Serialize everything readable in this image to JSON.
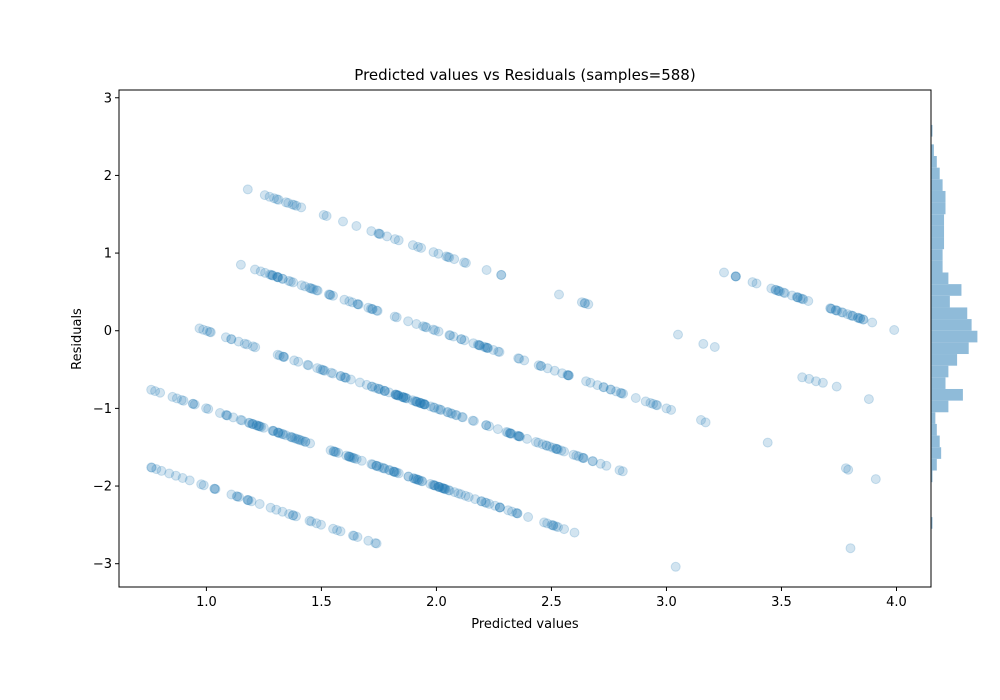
{
  "chart_data": {
    "type": "scatter",
    "title": "Predicted values vs Residuals (samples=588)",
    "xlabel": "Predicted values",
    "ylabel": "Residuals",
    "xlim": [
      0.62,
      4.15
    ],
    "ylim": [
      -3.3,
      3.1
    ],
    "x_ticks": [
      1.0,
      1.5,
      2.0,
      2.5,
      3.0,
      3.5,
      4.0
    ],
    "x_tick_labels": [
      "1.0",
      "1.5",
      "2.0",
      "2.5",
      "3.0",
      "3.5",
      "4.0"
    ],
    "y_ticks": [
      3,
      2,
      1,
      0,
      -1,
      -2,
      -3
    ],
    "y_tick_labels": [
      "3",
      "2",
      "1",
      "0",
      "−1",
      "−2",
      "−3"
    ],
    "grid": false,
    "marker_color": "#1f77b4",
    "marker_alpha": 0.2,
    "histogram_color": "#8fbbd9",
    "bands": [
      {
        "residual_at_2": -1.0,
        "x_range": [
          0.76,
          1.74
        ],
        "count": 40
      },
      {
        "residual_at_2": 0.0,
        "x_range": [
          0.76,
          2.6
        ],
        "count": 140
      },
      {
        "residual_at_2": 1.0,
        "x_range": [
          0.97,
          2.81
        ],
        "count": 130
      },
      {
        "residual_at_2": 2.0,
        "x_range": [
          1.15,
          3.02
        ],
        "count": 100
      },
      {
        "residual_at_2": 3.0,
        "x_range": [
          1.18,
          2.66
        ],
        "count": 40
      },
      {
        "residual_at_2": 4.0,
        "x_range": [
          3.25,
          3.99
        ],
        "count": 40
      }
    ],
    "outliers": [
      {
        "x": 3.05,
        "y": -0.05
      },
      {
        "x": 3.16,
        "y": -0.17
      },
      {
        "x": 3.21,
        "y": -0.21
      },
      {
        "x": 3.59,
        "y": -0.6
      },
      {
        "x": 3.62,
        "y": -0.62
      },
      {
        "x": 3.65,
        "y": -0.65
      },
      {
        "x": 3.68,
        "y": -0.67
      },
      {
        "x": 3.74,
        "y": -0.72
      },
      {
        "x": 3.88,
        "y": -0.88
      },
      {
        "x": 3.15,
        "y": -1.15
      },
      {
        "x": 3.17,
        "y": -1.18
      },
      {
        "x": 3.44,
        "y": -1.44
      },
      {
        "x": 3.78,
        "y": -1.77
      },
      {
        "x": 3.79,
        "y": -1.79
      },
      {
        "x": 3.91,
        "y": -1.91
      },
      {
        "x": 2.23,
        "y": -2.23
      },
      {
        "x": 2.52,
        "y": -2.52
      },
      {
        "x": 3.8,
        "y": -2.8
      },
      {
        "x": 3.04,
        "y": -3.04
      }
    ],
    "histogram": [
      {
        "y_from": 2.5,
        "y_to": 2.65,
        "count": 1
      },
      {
        "y_from": 2.25,
        "y_to": 2.4,
        "count": 2
      },
      {
        "y_from": 2.1,
        "y_to": 2.25,
        "count": 4
      },
      {
        "y_from": 1.95,
        "y_to": 2.1,
        "count": 6
      },
      {
        "y_from": 1.8,
        "y_to": 1.95,
        "count": 8
      },
      {
        "y_from": 1.65,
        "y_to": 1.8,
        "count": 10
      },
      {
        "y_from": 1.5,
        "y_to": 1.65,
        "count": 10
      },
      {
        "y_from": 1.35,
        "y_to": 1.5,
        "count": 9
      },
      {
        "y_from": 1.2,
        "y_to": 1.35,
        "count": 9
      },
      {
        "y_from": 1.05,
        "y_to": 1.2,
        "count": 9
      },
      {
        "y_from": 0.9,
        "y_to": 1.05,
        "count": 8
      },
      {
        "y_from": 0.75,
        "y_to": 0.9,
        "count": 8
      },
      {
        "y_from": 0.6,
        "y_to": 0.75,
        "count": 12
      },
      {
        "y_from": 0.45,
        "y_to": 0.6,
        "count": 21
      },
      {
        "y_from": 0.3,
        "y_to": 0.45,
        "count": 13
      },
      {
        "y_from": 0.15,
        "y_to": 0.3,
        "count": 25
      },
      {
        "y_from": 0.0,
        "y_to": 0.15,
        "count": 28
      },
      {
        "y_from": -0.15,
        "y_to": 0.0,
        "count": 32
      },
      {
        "y_from": -0.3,
        "y_to": -0.15,
        "count": 26
      },
      {
        "y_from": -0.45,
        "y_to": -0.3,
        "count": 18
      },
      {
        "y_from": -0.6,
        "y_to": -0.45,
        "count": 12
      },
      {
        "y_from": -0.75,
        "y_to": -0.6,
        "count": 10
      },
      {
        "y_from": -0.9,
        "y_to": -0.75,
        "count": 22
      },
      {
        "y_from": -1.05,
        "y_to": -0.9,
        "count": 12
      },
      {
        "y_from": -1.2,
        "y_to": -1.05,
        "count": 3
      },
      {
        "y_from": -1.35,
        "y_to": -1.2,
        "count": 4
      },
      {
        "y_from": -1.5,
        "y_to": -1.35,
        "count": 6
      },
      {
        "y_from": -1.65,
        "y_to": -1.5,
        "count": 7
      },
      {
        "y_from": -1.8,
        "y_to": -1.65,
        "count": 4
      },
      {
        "y_from": -1.95,
        "y_to": -1.8,
        "count": 1
      },
      {
        "y_from": -2.55,
        "y_to": -2.4,
        "count": 1
      }
    ]
  }
}
